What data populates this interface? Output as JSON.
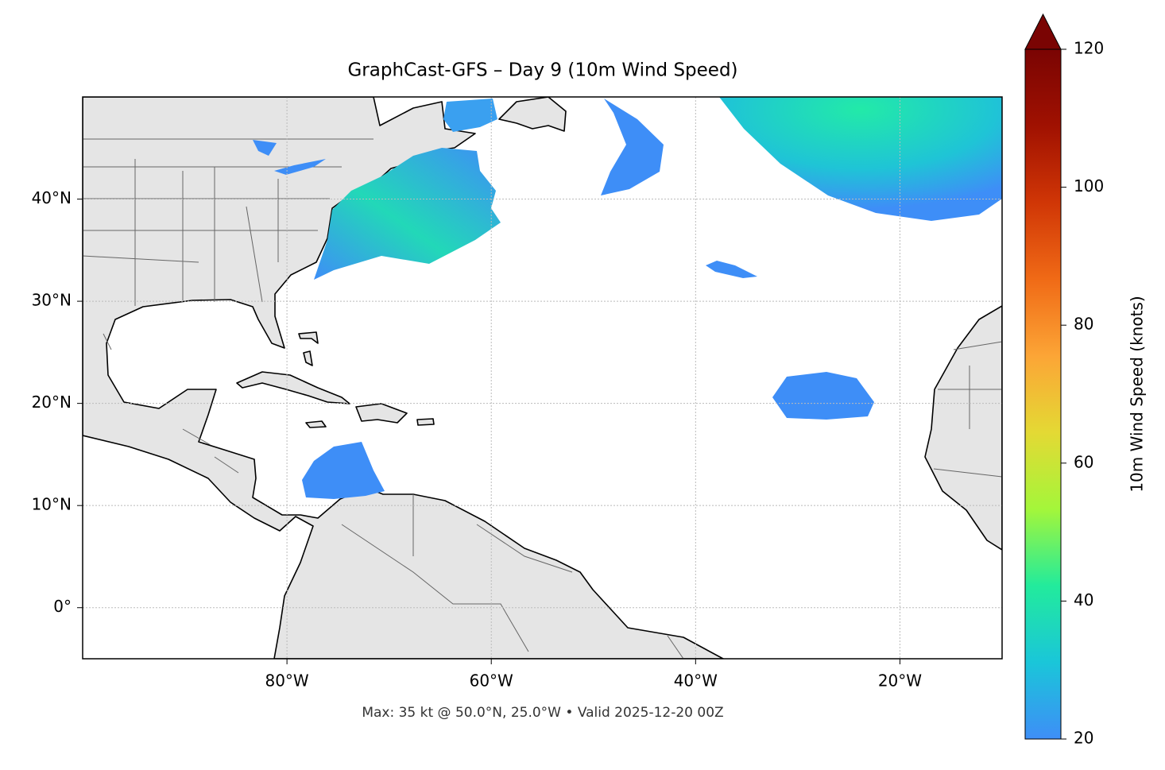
{
  "chart_data": {
    "type": "map",
    "title": "GraphCast-GFS – Day 9 (10m Wind Speed)",
    "annotation": "Max: 35 kt @ 50.0°N, 25.0°W • Valid 2025-12-20 00Z",
    "xlim": [
      -100,
      -10
    ],
    "ylim": [
      -5,
      50
    ],
    "xticks": [
      {
        "value": -80,
        "label": "80°W"
      },
      {
        "value": -60,
        "label": "60°W"
      },
      {
        "value": -40,
        "label": "40°W"
      },
      {
        "value": -20,
        "label": "20°W"
      }
    ],
    "yticks": [
      {
        "value": 0,
        "label": "0°"
      },
      {
        "value": 10,
        "label": "10°N"
      },
      {
        "value": 20,
        "label": "20°N"
      },
      {
        "value": 30,
        "label": "30°N"
      },
      {
        "value": 40,
        "label": "40°N"
      }
    ],
    "grid": true,
    "colorbar": {
      "label": "10m Wind Speed (knots)",
      "lim": [
        20,
        120
      ],
      "ticks": [
        20,
        40,
        60,
        80,
        100,
        120
      ],
      "extend": "max",
      "colors": [
        "#3e8ef7",
        "#1ac6d9",
        "#22eb9c",
        "#a4f63a",
        "#e4d934",
        "#fca536",
        "#f06a16",
        "#d03606",
        "#a01101",
        "#7a0403"
      ]
    }
  }
}
